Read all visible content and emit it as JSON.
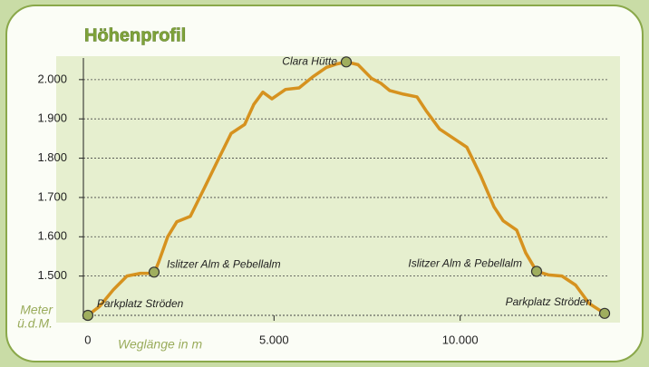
{
  "chart_data": {
    "type": "line",
    "title": "Höhenprofil",
    "x_label": "Weglänge in m",
    "y_label": [
      "Meter",
      "ü.d.M."
    ],
    "series": [
      {
        "name": "Höhenprofil",
        "color": "#d6921f",
        "x": [
          0,
          318,
          683,
          1050,
          1414,
          1779,
          1900,
          2144,
          2388,
          2752,
          3118,
          3483,
          3848,
          4213,
          4457,
          4700,
          4944,
          5309,
          5674,
          6040,
          6405,
          6697,
          6940,
          7256,
          7621,
          7866,
          8109,
          8474,
          8840,
          9083,
          9448,
          9813,
          10178,
          10543,
          10909,
          11152,
          11517,
          11760,
          12052,
          12369,
          12734,
          13100,
          13465,
          13879
        ],
        "values": [
          1400,
          1423,
          1465,
          1500,
          1507,
          1507,
          1535,
          1600,
          1638,
          1652,
          1722,
          1793,
          1863,
          1886,
          1937,
          1968,
          1951,
          1975,
          1979,
          2007,
          2031,
          2040,
          2045,
          2038,
          2003,
          1991,
          1972,
          1963,
          1956,
          1921,
          1874,
          1851,
          1828,
          1757,
          1676,
          1641,
          1617,
          1559,
          1512,
          1503,
          1500,
          1477,
          1430,
          1405
        ]
      }
    ],
    "annotations": [
      {
        "text": "Parkplatz Ströden",
        "x": 0,
        "y": 1400
      },
      {
        "text": "Islitzer Alm & Pebellalm",
        "x": 1779,
        "y": 1510
      },
      {
        "text": "Clara Hütte",
        "x": 6940,
        "y": 2045
      },
      {
        "text": "Islitzer Alm & Pebellalm",
        "x": 12052,
        "y": 1512
      },
      {
        "text": "Parkplatz Ströden",
        "x": 13879,
        "y": 1405
      }
    ],
    "marker_color": "#9fae5e",
    "xlim": [
      -120,
      14000
    ],
    "ylim": [
      1400,
      2055
    ],
    "xticks": [
      0,
      {
        "value": 5000,
        "label": "5.000"
      },
      {
        "value": 10000,
        "label": "10.000"
      }
    ],
    "yticks": [
      {
        "value": 1500,
        "label": "1.500"
      },
      {
        "value": 1600,
        "label": "1.600"
      },
      {
        "value": 1700,
        "label": "1.700"
      },
      {
        "value": 1800,
        "label": "1.800"
      },
      {
        "value": 1900,
        "label": "1.900"
      },
      {
        "value": 2000,
        "label": "2.000"
      }
    ],
    "grid": true
  }
}
